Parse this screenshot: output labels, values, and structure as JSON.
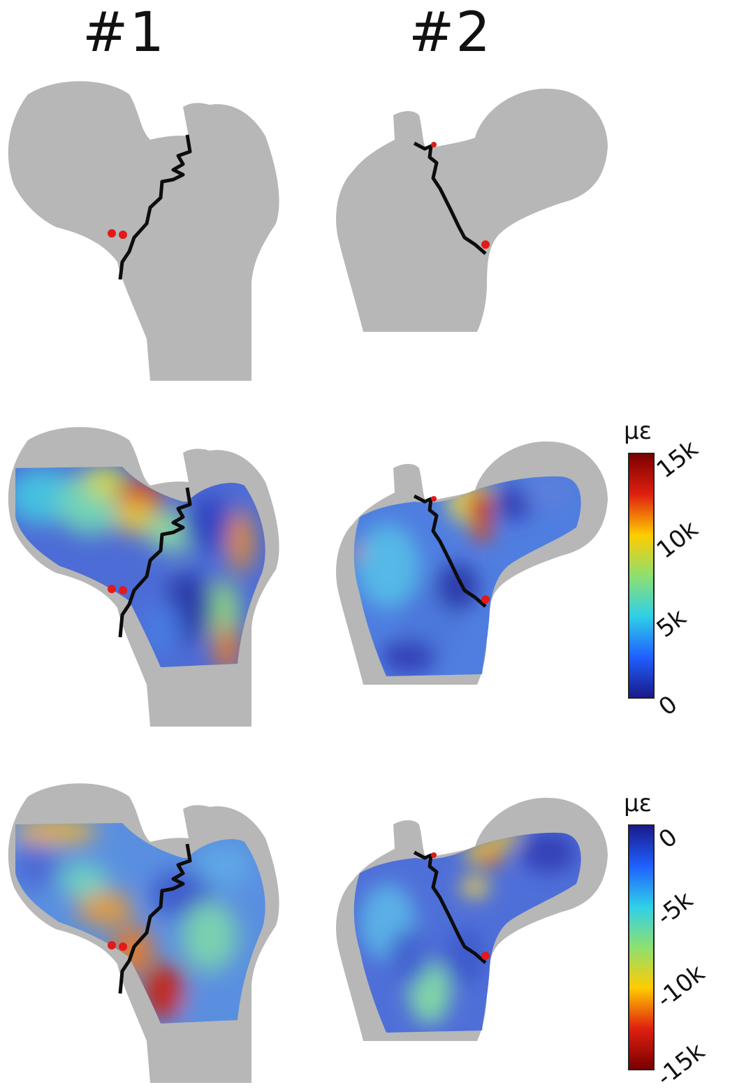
{
  "columns": [
    {
      "label": "#1"
    },
    {
      "label": "#2"
    }
  ],
  "rows": [
    {
      "kind": "geometry"
    },
    {
      "kind": "tensile-strain"
    },
    {
      "kind": "compressive-strain"
    }
  ],
  "colorbars": [
    {
      "unit": "με",
      "ticks": [
        "15k",
        "10k",
        "5k",
        "0"
      ],
      "gradient": [
        "#7a0000",
        "#e02010",
        "#ffcc00",
        "#8ee070",
        "#2fd0e8",
        "#2060ff",
        "#1a1a8a"
      ]
    },
    {
      "unit": "με",
      "ticks": [
        "0",
        "-5k",
        "-10k",
        "-15k"
      ],
      "gradient": [
        "#1a1a8a",
        "#2060ff",
        "#2fd0e8",
        "#8ee070",
        "#ffcc00",
        "#e02010",
        "#7a0000"
      ]
    }
  ],
  "colors": {
    "bone": "#b7b7b7",
    "fracture_line": "#0d0d0d",
    "marker": "#e21a1a"
  }
}
